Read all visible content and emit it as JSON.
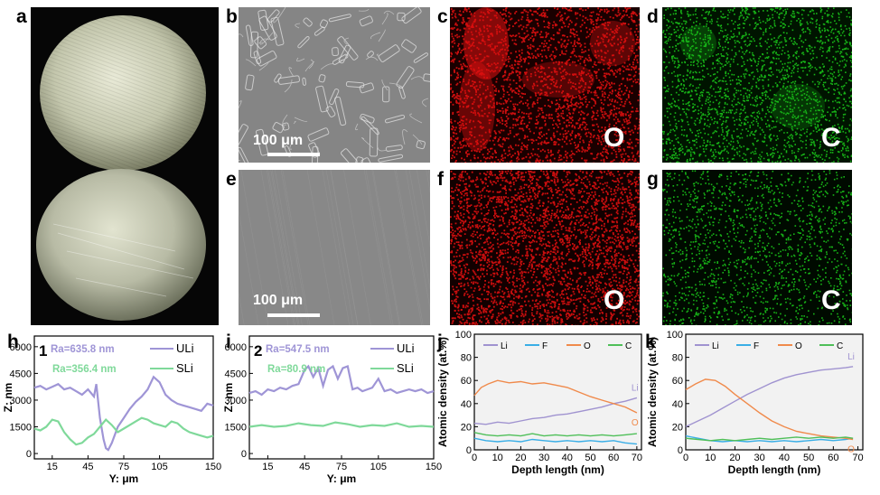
{
  "panels": {
    "a": "a",
    "b": "b",
    "c": "c",
    "d": "d",
    "e": "e",
    "f": "f",
    "g": "g",
    "h": "h",
    "i": "i",
    "j": "j",
    "k": "k"
  },
  "images": {
    "b_scale": "100 μm",
    "e_scale": "100 μm",
    "c_element": "O",
    "d_element": "C",
    "f_element": "O",
    "g_element": "C"
  },
  "colors": {
    "uli": "#9f95d6",
    "sli": "#7fd99a",
    "li": "#a093d0",
    "f": "#3aaee6",
    "o": "#f08a4b",
    "c": "#4fbf59",
    "o_map": "#e01010",
    "c_map": "#19c419"
  },
  "chart_data": [
    {
      "id": "h",
      "type": "line",
      "number": "1",
      "xlabel": "Y: μm",
      "ylabel": "Z: nm",
      "xticks": [
        15,
        45,
        75,
        105,
        150
      ],
      "yticks": [
        0,
        1500,
        3000,
        4500,
        6000
      ],
      "xlim": [
        0,
        150
      ],
      "ylim": [
        -300,
        6600
      ],
      "annotations": [
        {
          "text": "Ra=635.8 nm",
          "series": "ULi"
        },
        {
          "text": "Ra=356.4 nm",
          "series": "SLi"
        }
      ],
      "series": [
        {
          "name": "ULi",
          "x": [
            0,
            5,
            10,
            15,
            20,
            25,
            30,
            35,
            40,
            45,
            50,
            52,
            55,
            58,
            60,
            62,
            65,
            70,
            75,
            80,
            85,
            90,
            95,
            100,
            105,
            110,
            115,
            120,
            125,
            130,
            135,
            140,
            145,
            150
          ],
          "y": [
            3700,
            3800,
            3600,
            3750,
            3900,
            3600,
            3700,
            3500,
            3300,
            3600,
            3200,
            3900,
            2000,
            800,
            300,
            200,
            600,
            1500,
            2000,
            2500,
            2900,
            3200,
            3600,
            4300,
            4000,
            3300,
            3000,
            2800,
            2700,
            2600,
            2500,
            2400,
            2800,
            2700
          ]
        },
        {
          "name": "SLi",
          "x": [
            0,
            5,
            10,
            15,
            20,
            25,
            30,
            35,
            40,
            45,
            50,
            55,
            60,
            65,
            70,
            75,
            80,
            85,
            90,
            95,
            100,
            105,
            110,
            115,
            120,
            125,
            130,
            135,
            140,
            145,
            150
          ],
          "y": [
            1400,
            1300,
            1500,
            1900,
            1800,
            1200,
            800,
            500,
            600,
            900,
            1100,
            1500,
            1900,
            1600,
            1200,
            1400,
            1600,
            1800,
            2000,
            1900,
            1700,
            1600,
            1500,
            1800,
            1700,
            1400,
            1200,
            1100,
            1000,
            900,
            1000
          ]
        }
      ]
    },
    {
      "id": "i",
      "type": "line",
      "number": "2",
      "xlabel": "Y: μm",
      "ylabel": "Z: nm",
      "xticks": [
        15,
        45,
        75,
        105,
        150
      ],
      "yticks": [
        0,
        1500,
        3000,
        4500,
        6000
      ],
      "xlim": [
        0,
        150
      ],
      "ylim": [
        -300,
        6600
      ],
      "annotations": [
        {
          "text": "Ra=547.5 nm",
          "series": "ULi"
        },
        {
          "text": "Ra=80.9 nm",
          "series": "SLi"
        }
      ],
      "series": [
        {
          "name": "ULi",
          "x": [
            0,
            5,
            10,
            15,
            20,
            25,
            30,
            35,
            40,
            45,
            48,
            52,
            56,
            60,
            64,
            68,
            72,
            76,
            80,
            84,
            88,
            92,
            96,
            100,
            105,
            110,
            115,
            120,
            125,
            130,
            135,
            140,
            145,
            150
          ],
          "y": [
            3400,
            3500,
            3300,
            3600,
            3500,
            3700,
            3600,
            3800,
            3900,
            4700,
            4900,
            4300,
            4800,
            3800,
            4700,
            4900,
            4200,
            4800,
            4900,
            3600,
            3700,
            3500,
            3600,
            3700,
            4200,
            3500,
            3600,
            3400,
            3500,
            3600,
            3500,
            3600,
            3400,
            3500
          ]
        },
        {
          "name": "SLi",
          "x": [
            0,
            10,
            20,
            30,
            40,
            50,
            60,
            70,
            80,
            90,
            100,
            110,
            120,
            130,
            140,
            150
          ],
          "y": [
            1500,
            1600,
            1500,
            1550,
            1700,
            1600,
            1550,
            1750,
            1650,
            1500,
            1600,
            1550,
            1700,
            1500,
            1550,
            1500
          ]
        }
      ]
    },
    {
      "id": "j",
      "type": "line",
      "xlabel": "Depth length (nm)",
      "ylabel": "Atomic density (at.%)",
      "xticks": [
        0,
        10,
        20,
        30,
        40,
        50,
        60,
        70
      ],
      "yticks": [
        0,
        20,
        40,
        60,
        80,
        100
      ],
      "xlim": [
        0,
        72
      ],
      "ylim": [
        0,
        100
      ],
      "end_labels": [
        "Li",
        "O"
      ],
      "series": [
        {
          "name": "Li",
          "x": [
            0,
            5,
            10,
            15,
            20,
            25,
            30,
            35,
            40,
            45,
            50,
            55,
            60,
            65,
            70
          ],
          "y": [
            23,
            22,
            24,
            23,
            25,
            27,
            28,
            30,
            31,
            33,
            35,
            37,
            40,
            42,
            45
          ]
        },
        {
          "name": "F",
          "x": [
            0,
            5,
            10,
            15,
            20,
            25,
            30,
            35,
            40,
            45,
            50,
            55,
            60,
            65,
            70
          ],
          "y": [
            10,
            8,
            7,
            8,
            7,
            9,
            8,
            7,
            8,
            7,
            8,
            7,
            8,
            6,
            5
          ]
        },
        {
          "name": "O",
          "x": [
            0,
            3,
            6,
            10,
            15,
            20,
            25,
            30,
            35,
            40,
            45,
            50,
            55,
            60,
            65,
            70
          ],
          "y": [
            47,
            54,
            57,
            60,
            58,
            59,
            57,
            58,
            56,
            54,
            50,
            46,
            43,
            40,
            37,
            32
          ]
        },
        {
          "name": "C",
          "x": [
            0,
            5,
            10,
            15,
            20,
            25,
            30,
            35,
            40,
            45,
            50,
            55,
            60,
            65,
            70
          ],
          "y": [
            15,
            13,
            12,
            13,
            12,
            14,
            12,
            13,
            12,
            13,
            12,
            13,
            12,
            13,
            14
          ]
        }
      ]
    },
    {
      "id": "k",
      "type": "line",
      "xlabel": "Depth length (nm)",
      "ylabel": "Atomic density (at.%)",
      "xticks": [
        0,
        10,
        20,
        30,
        40,
        50,
        60,
        70
      ],
      "yticks": [
        0,
        20,
        40,
        60,
        80,
        100
      ],
      "xlim": [
        0,
        72
      ],
      "ylim": [
        0,
        100
      ],
      "end_labels": [
        "Li",
        "O"
      ],
      "series": [
        {
          "name": "Li",
          "x": [
            0,
            5,
            10,
            15,
            20,
            25,
            30,
            35,
            40,
            45,
            50,
            55,
            60,
            65,
            68
          ],
          "y": [
            20,
            25,
            30,
            36,
            42,
            48,
            53,
            58,
            62,
            65,
            67,
            69,
            70,
            71,
            72
          ]
        },
        {
          "name": "F",
          "x": [
            0,
            5,
            10,
            15,
            20,
            25,
            30,
            35,
            40,
            45,
            50,
            55,
            60,
            65,
            68
          ],
          "y": [
            12,
            10,
            8,
            7,
            8,
            7,
            8,
            7,
            8,
            7,
            8,
            9,
            8,
            9,
            10
          ]
        },
        {
          "name": "O",
          "x": [
            0,
            4,
            8,
            12,
            16,
            20,
            25,
            30,
            35,
            40,
            45,
            50,
            55,
            60,
            65,
            68
          ],
          "y": [
            52,
            57,
            61,
            60,
            55,
            48,
            40,
            32,
            25,
            20,
            16,
            14,
            12,
            11,
            10,
            9
          ]
        },
        {
          "name": "C",
          "x": [
            0,
            5,
            10,
            15,
            20,
            25,
            30,
            35,
            40,
            45,
            50,
            55,
            60,
            65,
            68
          ],
          "y": [
            10,
            9,
            8,
            9,
            8,
            9,
            10,
            9,
            10,
            11,
            10,
            11,
            10,
            11,
            10
          ]
        }
      ]
    }
  ]
}
